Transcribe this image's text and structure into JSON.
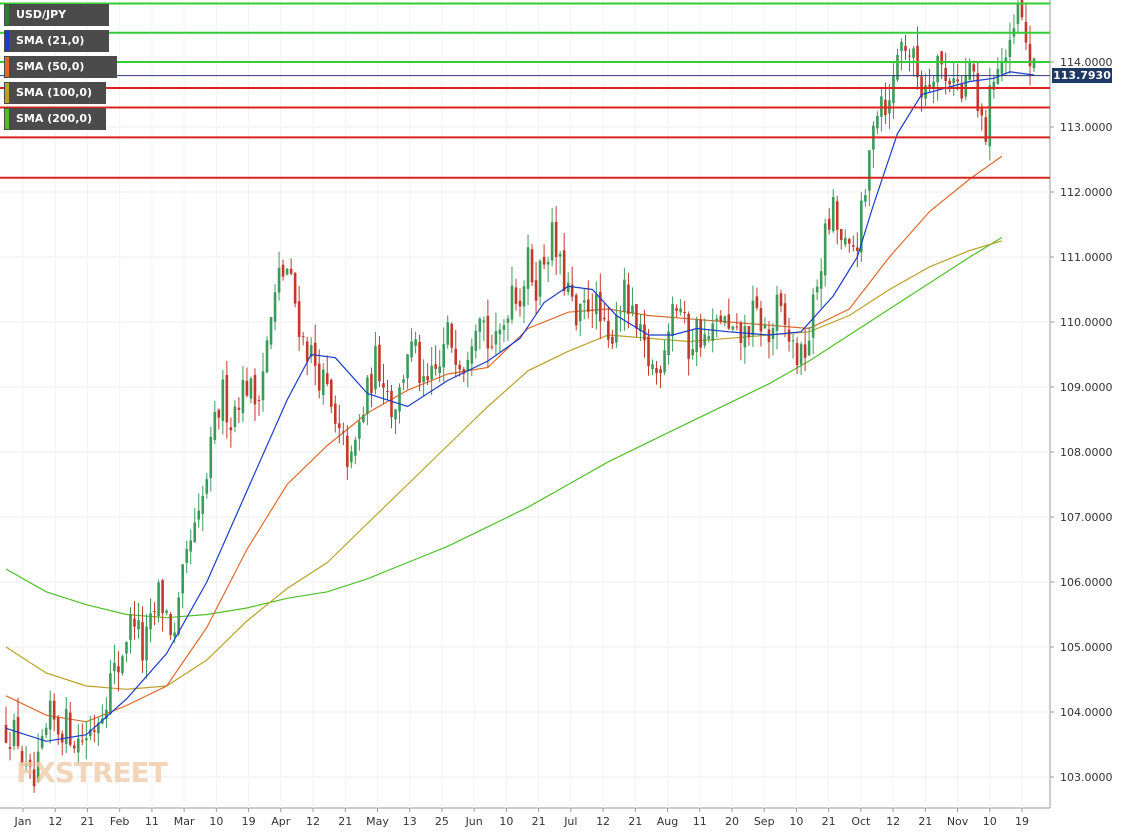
{
  "legend": {
    "symbol": "USD/JPY",
    "items": [
      {
        "label": "SMA (21,0)",
        "color": "#1a3cc8"
      },
      {
        "label": "SMA (50,0)",
        "color": "#e0692a"
      },
      {
        "label": "SMA (100,0)",
        "color": "#b9a22a"
      },
      {
        "label": "SMA (200,0)",
        "color": "#4fc028"
      }
    ]
  },
  "last_price_label": "113.7930",
  "watermark": "FXSTREET",
  "chart_data": {
    "type": "candlestick",
    "symbol": "USD/JPY",
    "ylim": [
      102.6,
      115.0
    ],
    "y_ticks": [
      "114.0000",
      "113.0000",
      "112.0000",
      "111.0000",
      "110.0000",
      "109.0000",
      "108.0000",
      "107.0000",
      "106.0000",
      "105.0000",
      "104.0000",
      "103.0000"
    ],
    "y_tick_values": [
      114,
      113,
      112,
      111,
      110,
      109,
      108,
      107,
      106,
      105,
      104,
      103
    ],
    "x_ticks": [
      "Jan",
      "12",
      "21",
      "Feb",
      "11",
      "Mar",
      "10",
      "19",
      "Apr",
      "12",
      "21",
      "May",
      "13",
      "25",
      "Jun",
      "10",
      "21",
      "Jul",
      "12",
      "21",
      "Aug",
      "11",
      "20",
      "Sep",
      "10",
      "21",
      "Oct",
      "12",
      "21",
      "Nov",
      "10",
      "19"
    ],
    "grid": true,
    "last_price": 113.793,
    "colors": {
      "up": "#3c9a5a",
      "down": "#c0392b",
      "sma21": "#1a3cc8",
      "sma50": "#e0692a",
      "sma100": "#b9a22a",
      "sma200": "#4fc028"
    },
    "horizontal_levels": [
      {
        "value": 114.9,
        "color": "#33cc33"
      },
      {
        "value": 114.45,
        "color": "#33cc33"
      },
      {
        "value": 114.0,
        "color": "#33cc33"
      },
      {
        "value": 113.79,
        "color": "#2b3a78"
      },
      {
        "value": 113.6,
        "color": "#dd2222"
      },
      {
        "value": 113.3,
        "color": "#dd2222"
      },
      {
        "value": 112.84,
        "color": "#dd2222"
      },
      {
        "value": 112.22,
        "color": "#dd2222"
      }
    ],
    "close_path": [
      [
        0,
        103.75
      ],
      [
        3,
        103.6
      ],
      [
        5,
        103.0
      ],
      [
        7,
        102.85
      ],
      [
        9,
        103.4
      ],
      [
        11,
        103.9
      ],
      [
        13,
        103.75
      ],
      [
        15,
        103.8
      ],
      [
        18,
        103.55
      ],
      [
        20,
        103.65
      ],
      [
        22,
        103.8
      ],
      [
        24,
        104.1
      ],
      [
        26,
        104.5
      ],
      [
        28,
        104.7
      ],
      [
        30,
        105.2
      ],
      [
        32,
        105.5
      ],
      [
        34,
        104.9
      ],
      [
        36,
        105.3
      ],
      [
        38,
        105.8
      ],
      [
        40,
        105.5
      ],
      [
        42,
        105.1
      ],
      [
        44,
        106.0
      ],
      [
        46,
        106.6
      ],
      [
        48,
        106.9
      ],
      [
        50,
        107.6
      ],
      [
        52,
        108.4
      ],
      [
        54,
        108.9
      ],
      [
        56,
        108.5
      ],
      [
        58,
        108.9
      ],
      [
        60,
        109.05
      ],
      [
        62,
        108.8
      ],
      [
        64,
        109.3
      ],
      [
        66,
        110.0
      ],
      [
        68,
        110.7
      ],
      [
        70,
        110.8
      ],
      [
        72,
        110.3
      ],
      [
        74,
        109.7
      ],
      [
        76,
        109.5
      ],
      [
        78,
        109.2
      ],
      [
        80,
        108.9
      ],
      [
        82,
        108.3
      ],
      [
        84,
        108.1
      ],
      [
        86,
        107.8
      ],
      [
        88,
        108.4
      ],
      [
        90,
        108.9
      ],
      [
        92,
        109.4
      ],
      [
        94,
        109.2
      ],
      [
        96,
        108.7
      ],
      [
        98,
        108.9
      ],
      [
        100,
        109.6
      ],
      [
        102,
        109.5
      ],
      [
        104,
        108.9
      ],
      [
        106,
        109.1
      ],
      [
        108,
        109.3
      ],
      [
        110,
        109.8
      ],
      [
        112,
        109.6
      ],
      [
        114,
        109.4
      ],
      [
        116,
        109.9
      ],
      [
        118,
        110.3
      ],
      [
        120,
        109.7
      ],
      [
        122,
        109.6
      ],
      [
        124,
        110.0
      ],
      [
        126,
        110.6
      ],
      [
        128,
        110.4
      ],
      [
        130,
        110.9
      ],
      [
        132,
        110.6
      ],
      [
        134,
        111.0
      ],
      [
        136,
        111.3
      ],
      [
        138,
        110.8
      ],
      [
        140,
        110.5
      ],
      [
        142,
        109.9
      ],
      [
        144,
        110.2
      ],
      [
        146,
        110.4
      ],
      [
        148,
        110.0
      ],
      [
        150,
        109.6
      ],
      [
        152,
        110.2
      ],
      [
        154,
        110.4
      ],
      [
        156,
        110.0
      ],
      [
        158,
        109.7
      ],
      [
        160,
        109.4
      ],
      [
        162,
        109.2
      ],
      [
        164,
        109.7
      ],
      [
        166,
        110.3
      ],
      [
        168,
        110.2
      ],
      [
        170,
        109.6
      ],
      [
        172,
        109.9
      ],
      [
        174,
        109.7
      ],
      [
        176,
        109.8
      ],
      [
        178,
        110.1
      ],
      [
        180,
        109.8
      ],
      [
        182,
        109.7
      ],
      [
        184,
        109.8
      ],
      [
        186,
        110.1
      ],
      [
        188,
        110.0
      ],
      [
        190,
        109.7
      ],
      [
        192,
        110.2
      ],
      [
        194,
        109.9
      ],
      [
        196,
        109.6
      ],
      [
        198,
        109.4
      ],
      [
        200,
        109.8
      ],
      [
        202,
        110.6
      ],
      [
        204,
        111.3
      ],
      [
        206,
        111.7
      ],
      [
        208,
        111.2
      ],
      [
        210,
        111.0
      ],
      [
        212,
        111.3
      ],
      [
        214,
        111.9
      ],
      [
        216,
        113.2
      ],
      [
        218,
        113.5
      ],
      [
        220,
        113.3
      ],
      [
        222,
        114.2
      ],
      [
        224,
        114.3
      ],
      [
        226,
        114.0
      ],
      [
        228,
        113.6
      ],
      [
        230,
        113.8
      ],
      [
        232,
        114.1
      ],
      [
        234,
        113.7
      ],
      [
        236,
        113.9
      ],
      [
        238,
        113.4
      ],
      [
        240,
        114.0
      ],
      [
        242,
        113.2
      ],
      [
        244,
        112.9
      ],
      [
        246,
        113.9
      ],
      [
        248,
        114.0
      ],
      [
        250,
        114.1
      ],
      [
        252,
        114.8
      ],
      [
        254,
        114.3
      ],
      [
        256,
        113.79
      ]
    ],
    "sma21": [
      [
        0,
        103.75
      ],
      [
        10,
        103.55
      ],
      [
        20,
        103.65
      ],
      [
        30,
        104.2
      ],
      [
        40,
        104.9
      ],
      [
        50,
        106.0
      ],
      [
        60,
        107.4
      ],
      [
        70,
        108.8
      ],
      [
        76,
        109.5
      ],
      [
        82,
        109.45
      ],
      [
        90,
        108.9
      ],
      [
        100,
        108.7
      ],
      [
        110,
        109.1
      ],
      [
        120,
        109.4
      ],
      [
        128,
        109.75
      ],
      [
        134,
        110.3
      ],
      [
        140,
        110.55
      ],
      [
        146,
        110.5
      ],
      [
        152,
        110.1
      ],
      [
        160,
        109.8
      ],
      [
        166,
        109.8
      ],
      [
        172,
        109.9
      ],
      [
        180,
        109.85
      ],
      [
        190,
        109.8
      ],
      [
        198,
        109.85
      ],
      [
        206,
        110.4
      ],
      [
        212,
        111.0
      ],
      [
        216,
        111.8
      ],
      [
        222,
        112.9
      ],
      [
        228,
        113.5
      ],
      [
        234,
        113.6
      ],
      [
        240,
        113.7
      ],
      [
        246,
        113.75
      ],
      [
        250,
        113.85
      ],
      [
        256,
        113.8
      ]
    ],
    "sma50": [
      [
        0,
        104.25
      ],
      [
        10,
        103.95
      ],
      [
        20,
        103.85
      ],
      [
        30,
        104.1
      ],
      [
        40,
        104.4
      ],
      [
        50,
        105.3
      ],
      [
        60,
        106.5
      ],
      [
        70,
        107.5
      ],
      [
        80,
        108.1
      ],
      [
        90,
        108.6
      ],
      [
        100,
        108.95
      ],
      [
        110,
        109.2
      ],
      [
        120,
        109.3
      ],
      [
        130,
        109.9
      ],
      [
        140,
        110.15
      ],
      [
        150,
        110.2
      ],
      [
        160,
        110.1
      ],
      [
        170,
        110.05
      ],
      [
        180,
        110.0
      ],
      [
        190,
        109.95
      ],
      [
        200,
        109.9
      ],
      [
        210,
        110.2
      ],
      [
        220,
        111.0
      ],
      [
        230,
        111.7
      ],
      [
        240,
        112.2
      ],
      [
        248,
        112.55
      ]
    ],
    "sma100": [
      [
        0,
        105.0
      ],
      [
        10,
        104.6
      ],
      [
        20,
        104.4
      ],
      [
        30,
        104.35
      ],
      [
        40,
        104.4
      ],
      [
        50,
        104.8
      ],
      [
        60,
        105.4
      ],
      [
        70,
        105.9
      ],
      [
        80,
        106.3
      ],
      [
        90,
        106.9
      ],
      [
        100,
        107.5
      ],
      [
        110,
        108.1
      ],
      [
        120,
        108.7
      ],
      [
        130,
        109.25
      ],
      [
        140,
        109.55
      ],
      [
        150,
        109.8
      ],
      [
        160,
        109.75
      ],
      [
        170,
        109.7
      ],
      [
        180,
        109.75
      ],
      [
        190,
        109.8
      ],
      [
        200,
        109.85
      ],
      [
        210,
        110.1
      ],
      [
        220,
        110.5
      ],
      [
        230,
        110.85
      ],
      [
        240,
        111.1
      ],
      [
        248,
        111.25
      ]
    ],
    "sma200": [
      [
        0,
        106.2
      ],
      [
        10,
        105.85
      ],
      [
        20,
        105.65
      ],
      [
        30,
        105.5
      ],
      [
        40,
        105.45
      ],
      [
        50,
        105.5
      ],
      [
        60,
        105.6
      ],
      [
        70,
        105.75
      ],
      [
        80,
        105.85
      ],
      [
        90,
        106.05
      ],
      [
        100,
        106.3
      ],
      [
        110,
        106.55
      ],
      [
        120,
        106.85
      ],
      [
        130,
        107.15
      ],
      [
        140,
        107.5
      ],
      [
        150,
        107.85
      ],
      [
        160,
        108.15
      ],
      [
        170,
        108.45
      ],
      [
        180,
        108.75
      ],
      [
        190,
        109.05
      ],
      [
        200,
        109.4
      ],
      [
        210,
        109.8
      ],
      [
        220,
        110.2
      ],
      [
        230,
        110.6
      ],
      [
        240,
        111.0
      ],
      [
        248,
        111.3
      ]
    ]
  }
}
